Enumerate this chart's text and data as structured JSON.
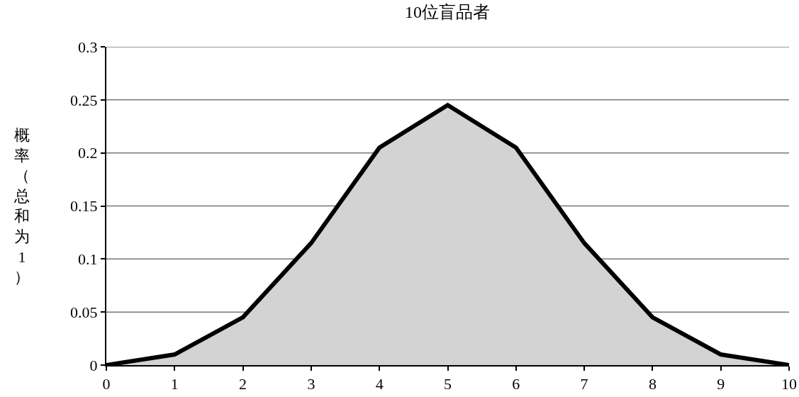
{
  "chart_data": {
    "type": "area",
    "title": "10位盲品者",
    "ylabel": "概率（总和为1）",
    "x": [
      0,
      1,
      2,
      3,
      4,
      5,
      6,
      7,
      8,
      9,
      10
    ],
    "series": [
      {
        "color": "#d3d3d3",
        "values": [
          0,
          0.01,
          0.045,
          0.115,
          0.205,
          0.245,
          0.205,
          0.115,
          0.045,
          0.01,
          0
        ]
      }
    ],
    "xlim": [
      0,
      10
    ],
    "xticks": [
      0,
      1,
      2,
      3,
      4,
      5,
      6,
      7,
      8,
      9,
      10
    ],
    "ylim": [
      0,
      0.3
    ],
    "yticks": [
      0,
      0.05,
      0.1,
      0.15,
      0.2,
      0.25,
      0.3
    ],
    "grid": "y",
    "marker": "none",
    "line_style": "solid"
  }
}
